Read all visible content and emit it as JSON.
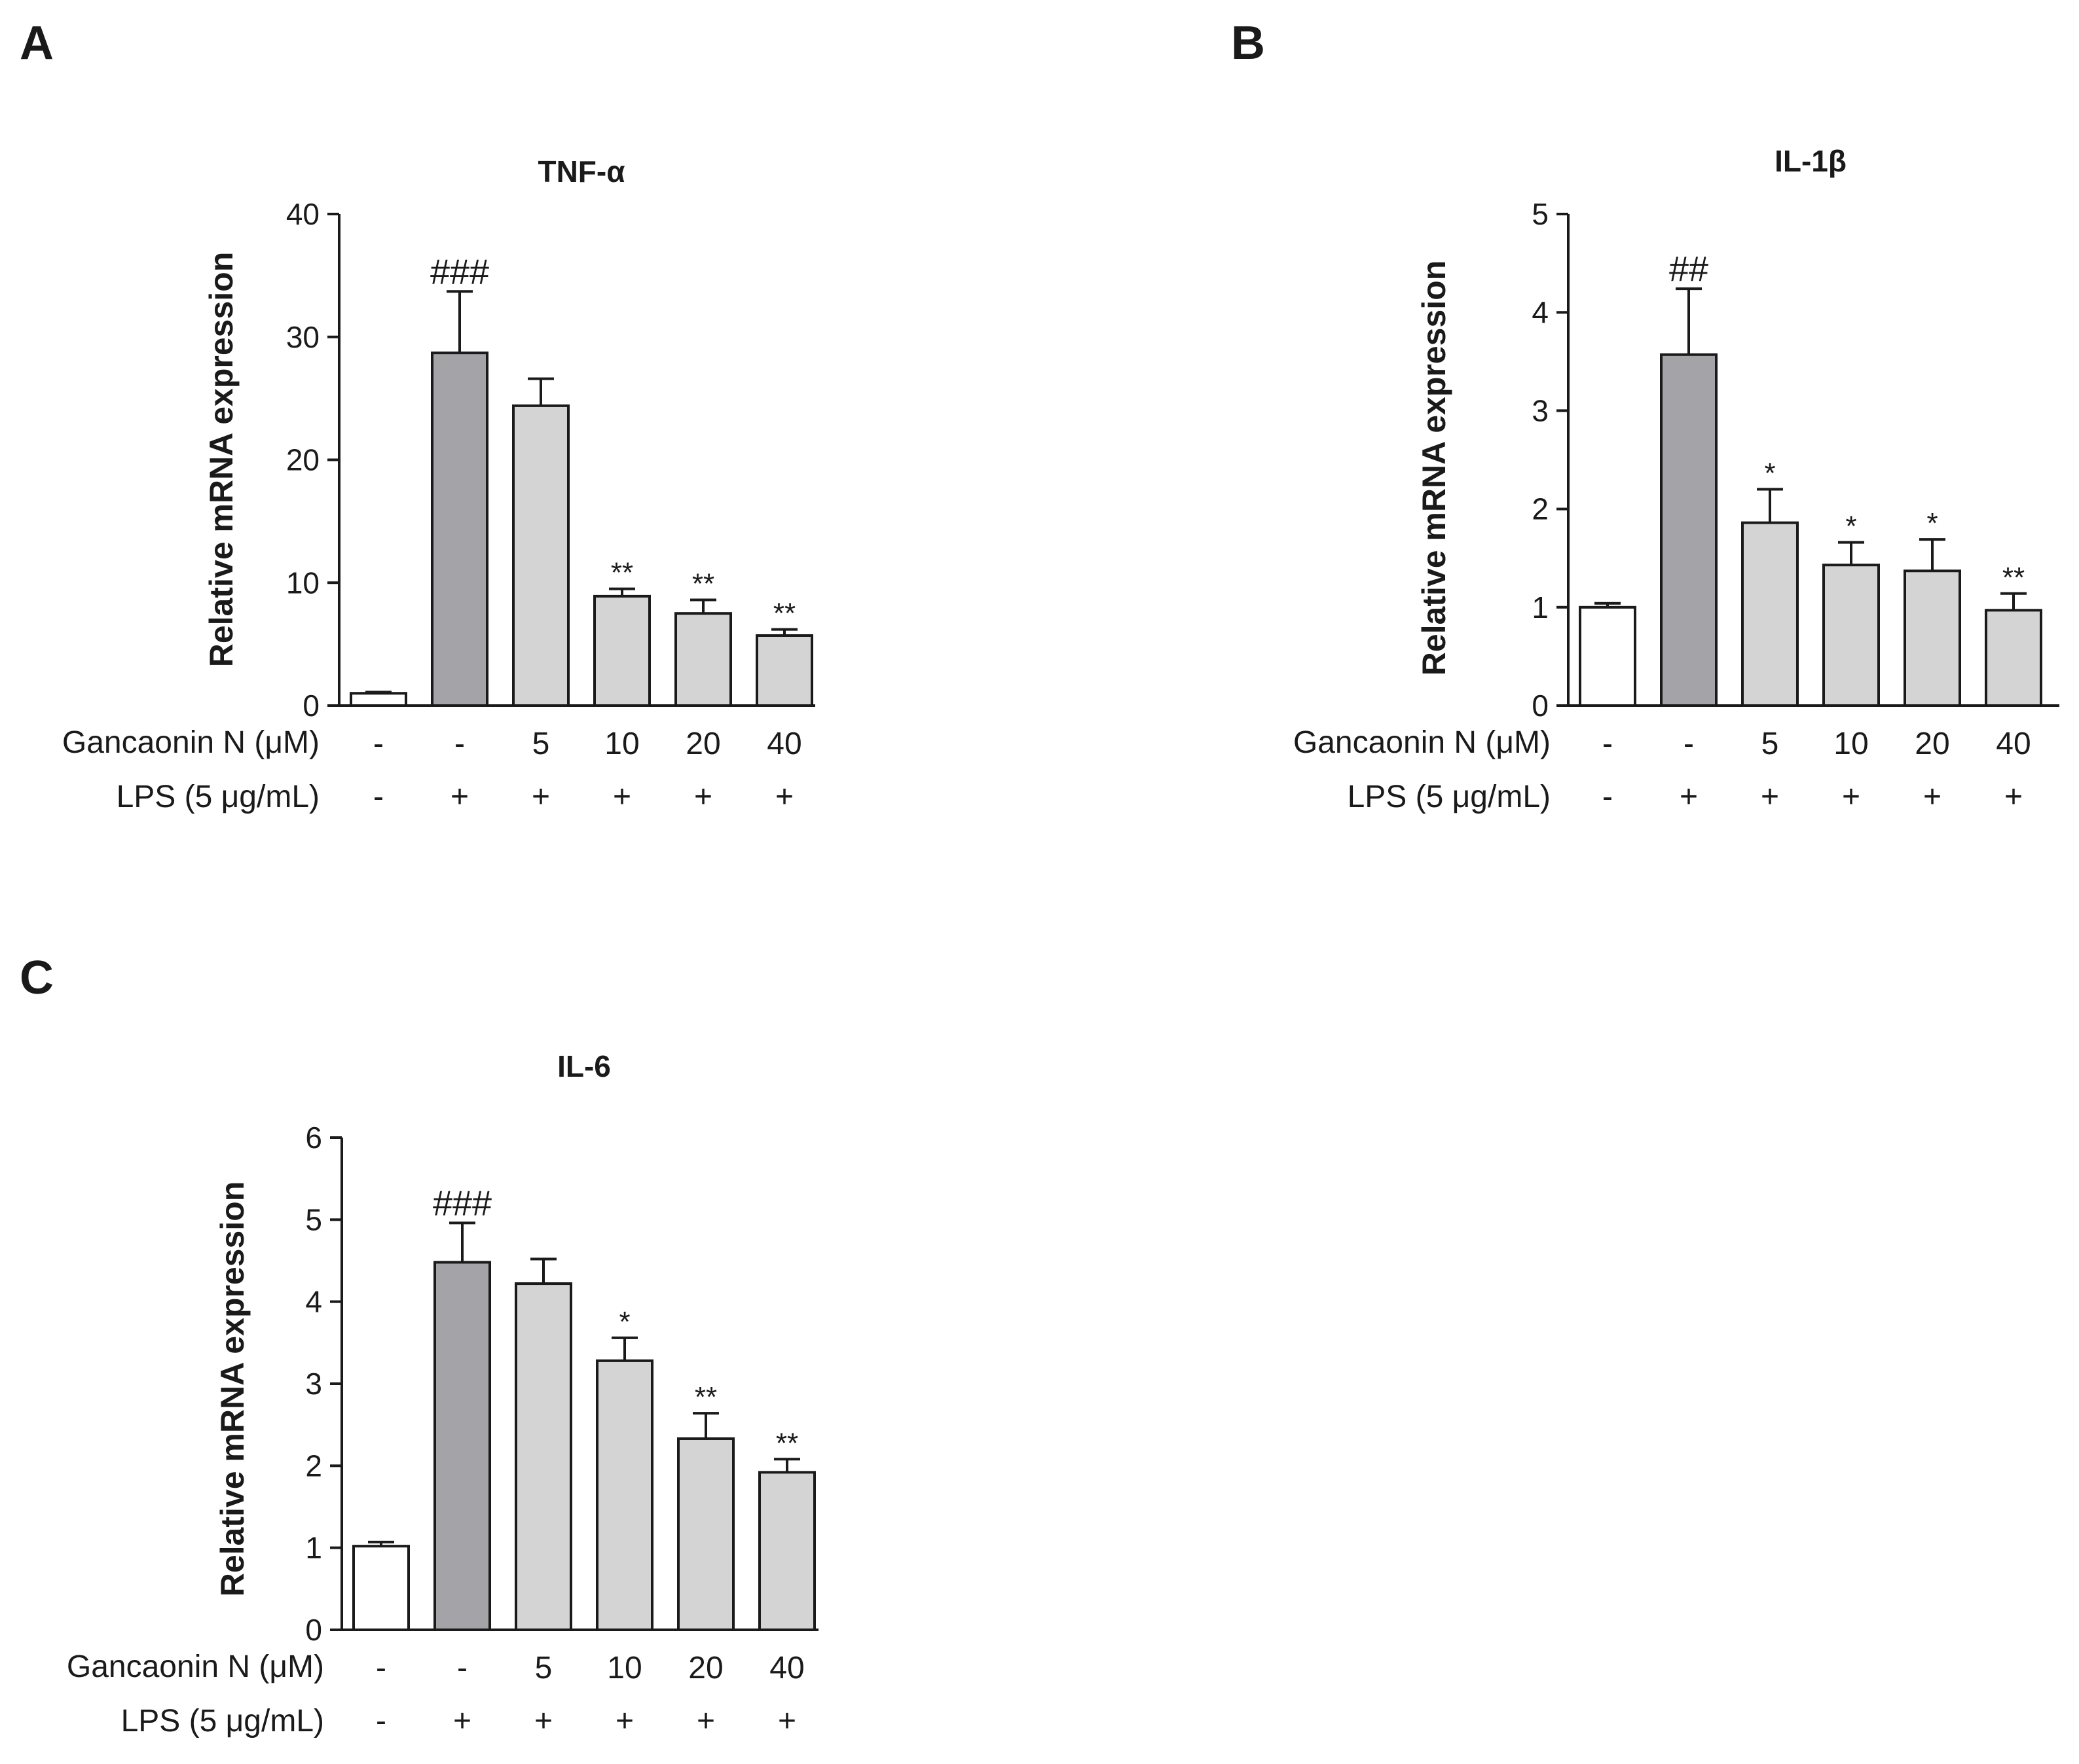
{
  "chart_data": [
    {
      "type": "bar",
      "panel": "A",
      "title": "TNF-α",
      "xlabel": "",
      "ylabel": "Relative mRNA expression",
      "ylim": [
        0,
        40
      ],
      "yticks": [
        "0",
        "10",
        "20",
        "30",
        "40"
      ],
      "row_labels": [
        "Gancaonin N (μM)",
        "LPS (5 μg/mL)"
      ],
      "categories": [
        "-",
        "-",
        "5",
        "10",
        "20",
        "40"
      ],
      "lps": [
        "-",
        "+",
        "+",
        "+",
        "+",
        "+"
      ],
      "values": [
        1.0,
        28.7,
        24.4,
        8.9,
        7.5,
        5.7
      ],
      "errors": [
        0.1,
        5.0,
        2.2,
        0.6,
        1.1,
        0.5
      ],
      "annotations": [
        "",
        "###",
        "",
        "**",
        "**",
        "**"
      ],
      "colors": [
        "#ffffff",
        "#a3a3a8",
        "#d4d4d4",
        "#d4d4d4",
        "#d4d4d4",
        "#d4d4d4"
      ]
    },
    {
      "type": "bar",
      "panel": "B",
      "title": "IL-1β",
      "xlabel": "",
      "ylabel": "Relative mRNA expression",
      "ylim": [
        0,
        5
      ],
      "yticks": [
        "0",
        "1",
        "2",
        "3",
        "4",
        "5"
      ],
      "row_labels": [
        "Gancaonin N (μM)",
        "LPS (5 μg/mL)"
      ],
      "categories": [
        "-",
        "-",
        "5",
        "10",
        "20",
        "40"
      ],
      "lps": [
        "-",
        "+",
        "+",
        "+",
        "+",
        "+"
      ],
      "values": [
        1.0,
        3.57,
        1.86,
        1.43,
        1.37,
        0.97
      ],
      "errors": [
        0.04,
        0.67,
        0.34,
        0.23,
        0.32,
        0.17
      ],
      "annotations": [
        "",
        "##",
        "*",
        "*",
        "*",
        "**"
      ],
      "colors": [
        "#ffffff",
        "#a3a3a8",
        "#d4d4d4",
        "#d4d4d4",
        "#d4d4d4",
        "#d4d4d4"
      ]
    },
    {
      "type": "bar",
      "panel": "C",
      "title": "IL-6",
      "xlabel": "",
      "ylabel": "Relative mRNA expression",
      "ylim": [
        0,
        6
      ],
      "yticks": [
        "0",
        "1",
        "2",
        "3",
        "4",
        "5",
        "6"
      ],
      "row_labels": [
        "Gancaonin N (μM)",
        "LPS (5 μg/mL)"
      ],
      "categories": [
        "-",
        "-",
        "5",
        "10",
        "20",
        "40"
      ],
      "lps": [
        "-",
        "+",
        "+",
        "+",
        "+",
        "+"
      ],
      "values": [
        1.02,
        4.48,
        4.22,
        3.28,
        2.33,
        1.92
      ],
      "errors": [
        0.05,
        0.48,
        0.3,
        0.28,
        0.31,
        0.16
      ],
      "annotations": [
        "",
        "###",
        "",
        "*",
        "**",
        "**"
      ],
      "colors": [
        "#ffffff",
        "#a3a3a8",
        "#d4d4d4",
        "#d4d4d4",
        "#d4d4d4",
        "#d4d4d4"
      ]
    }
  ]
}
